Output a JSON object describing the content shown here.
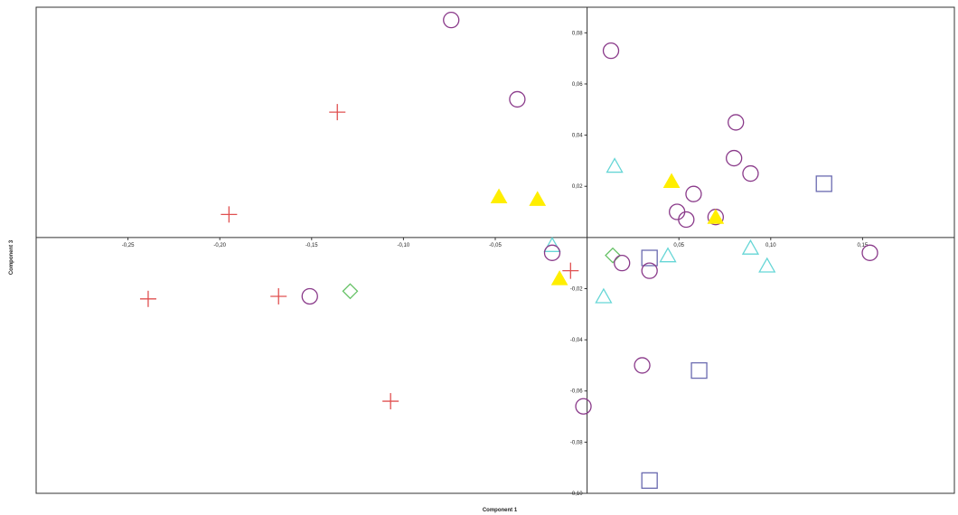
{
  "chart_data": {
    "type": "scatter",
    "xlabel": "Component 1",
    "ylabel": "Component 3",
    "xlim": [
      -0.3,
      0.2
    ],
    "ylim": [
      -0.1,
      0.09
    ],
    "x_ticks": [
      {
        "value": -0.25,
        "label": "-0,25"
      },
      {
        "value": -0.2,
        "label": "-0,20"
      },
      {
        "value": -0.15,
        "label": "-0,15"
      },
      {
        "value": -0.1,
        "label": "-0,10"
      },
      {
        "value": -0.05,
        "label": "-0,05"
      },
      {
        "value": 0.05,
        "label": "0,05"
      },
      {
        "value": 0.1,
        "label": "0,10"
      },
      {
        "value": 0.15,
        "label": "0,15"
      }
    ],
    "y_ticks": [
      {
        "value": 0.08,
        "label": "0,08"
      },
      {
        "value": 0.06,
        "label": "0,06"
      },
      {
        "value": 0.04,
        "label": "0,04"
      },
      {
        "value": 0.02,
        "label": "0,02"
      },
      {
        "value": -0.02,
        "label": "-0,02"
      },
      {
        "value": -0.04,
        "label": "-0,04"
      },
      {
        "value": -0.06,
        "label": "-0,06"
      },
      {
        "value": -0.08,
        "label": "-0,08"
      },
      {
        "value": -0.1,
        "label": "-0,10"
      }
    ],
    "grid": false,
    "series": [
      {
        "marker": "cross",
        "color": "#e05050",
        "points": [
          {
            "x": -0.136,
            "y": 0.049
          },
          {
            "x": -0.195,
            "y": 0.009
          },
          {
            "x": -0.239,
            "y": -0.024
          },
          {
            "x": -0.168,
            "y": -0.023
          },
          {
            "x": -0.107,
            "y": -0.064
          },
          {
            "x": -0.009,
            "y": -0.013
          }
        ]
      },
      {
        "marker": "circle",
        "color": "#8a3a8a",
        "points": [
          {
            "x": -0.074,
            "y": 0.085
          },
          {
            "x": -0.038,
            "y": 0.054
          },
          {
            "x": 0.013,
            "y": 0.073
          },
          {
            "x": 0.081,
            "y": 0.045
          },
          {
            "x": 0.08,
            "y": 0.031
          },
          {
            "x": 0.089,
            "y": 0.025
          },
          {
            "x": 0.058,
            "y": 0.017
          },
          {
            "x": 0.049,
            "y": 0.01
          },
          {
            "x": 0.054,
            "y": 0.007
          },
          {
            "x": 0.07,
            "y": 0.008
          },
          {
            "x": -0.019,
            "y": -0.006
          },
          {
            "x": 0.019,
            "y": -0.01
          },
          {
            "x": 0.034,
            "y": -0.013
          },
          {
            "x": 0.154,
            "y": -0.006
          },
          {
            "x": -0.151,
            "y": -0.023
          },
          {
            "x": 0.03,
            "y": -0.05
          },
          {
            "x": -0.002,
            "y": -0.066
          }
        ]
      },
      {
        "marker": "triangle-filled",
        "color": "#ffee00",
        "points": [
          {
            "x": -0.048,
            "y": 0.016
          },
          {
            "x": -0.027,
            "y": 0.015
          },
          {
            "x": 0.046,
            "y": 0.022
          },
          {
            "x": 0.07,
            "y": 0.008
          },
          {
            "x": -0.015,
            "y": -0.016
          }
        ]
      },
      {
        "marker": "triangle-open",
        "color": "#66d6d6",
        "points": [
          {
            "x": 0.015,
            "y": 0.028
          },
          {
            "x": -0.019,
            "y": -0.003
          },
          {
            "x": 0.044,
            "y": -0.007
          },
          {
            "x": 0.089,
            "y": -0.004
          },
          {
            "x": 0.098,
            "y": -0.011
          },
          {
            "x": 0.009,
            "y": -0.023
          }
        ]
      },
      {
        "marker": "square",
        "color": "#6a6ab0",
        "points": [
          {
            "x": 0.129,
            "y": 0.021
          },
          {
            "x": 0.034,
            "y": -0.008
          },
          {
            "x": 0.061,
            "y": -0.052
          },
          {
            "x": 0.034,
            "y": -0.095
          }
        ]
      },
      {
        "marker": "diamond",
        "color": "#66c266",
        "points": [
          {
            "x": -0.129,
            "y": -0.021
          },
          {
            "x": 0.014,
            "y": -0.007
          }
        ]
      }
    ]
  }
}
